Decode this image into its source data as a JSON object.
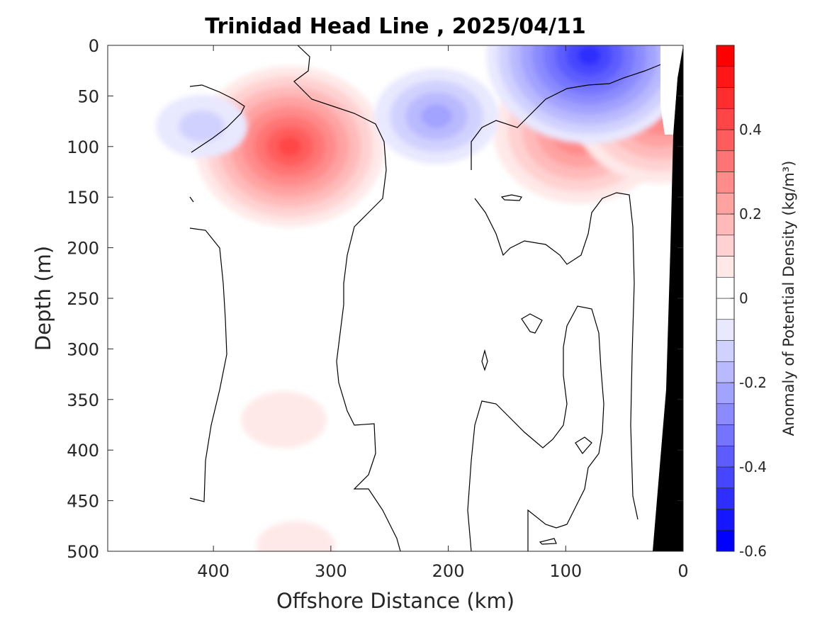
{
  "chart_data": {
    "type": "heatmap",
    "title": "Trinidad Head Line , 2025/04/11",
    "xlabel": "Offshore Distance (km)",
    "ylabel": "Depth (m)",
    "colorbar_label": "Anomaly of Potential Density (kg/m³)",
    "xlim": [
      490,
      0
    ],
    "ylim": [
      500,
      0
    ],
    "x_ticks": [
      400,
      300,
      200,
      100,
      0
    ],
    "y_ticks": [
      0,
      50,
      100,
      150,
      200,
      250,
      300,
      350,
      400,
      450,
      500
    ],
    "colorbar_range": [
      -0.6,
      0.6
    ],
    "colorbar_ticks": [
      0.4,
      0.2,
      0,
      -0.2,
      -0.4,
      -0.6
    ],
    "colorbar_step": 0.05,
    "colors": {
      "positive": "#ff0000",
      "negative": "#0000ff",
      "zero": "#ffffff",
      "bottom_mask": "#000000",
      "contour": "#000000"
    },
    "features": [
      {
        "name": "offshore dense eddy",
        "sign": "positive",
        "x": 335,
        "depth": 100,
        "peak": 0.4
      },
      {
        "name": "nearshore dense core",
        "sign": "positive",
        "x": 88,
        "depth": 85,
        "peak": 0.35
      },
      {
        "name": "coastal dense band",
        "sign": "positive",
        "x": 20,
        "depth": 65,
        "peak": 0.35
      },
      {
        "name": "surface light water",
        "sign": "negative",
        "x": 80,
        "depth": 10,
        "peak": -0.45
      },
      {
        "name": "subsurface light tongue",
        "sign": "negative",
        "x": 210,
        "depth": 70,
        "peak": -0.2
      },
      {
        "name": "small light patch",
        "sign": "negative",
        "x": 410,
        "depth": 80,
        "peak": -0.1
      },
      {
        "name": "deep dense patch",
        "sign": "positive",
        "x": 340,
        "depth": 370,
        "peak": 0.08
      },
      {
        "name": "bottom dense patch",
        "sign": "positive",
        "x": 330,
        "depth": 495,
        "peak": 0.06
      }
    ]
  }
}
